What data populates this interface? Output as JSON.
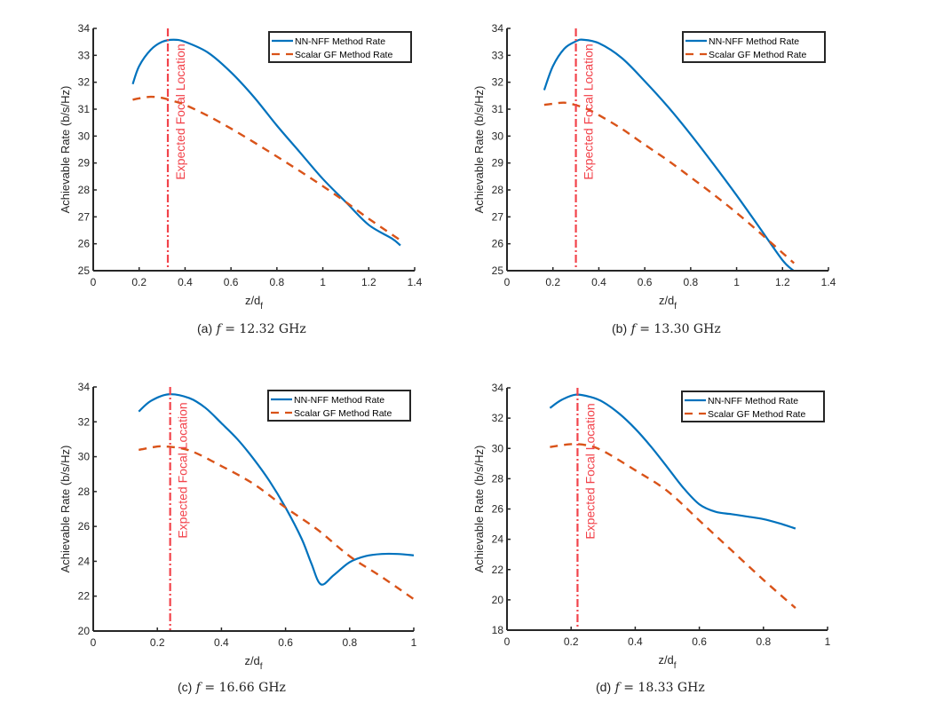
{
  "figure_description": "Four subplots comparing achievable rate of NN-NFF vs Scalar GF methods along z/d_f",
  "chart_data": [
    {
      "type": "line",
      "panel": "a",
      "caption_tag": "(a)",
      "caption_var": "f",
      "caption_eq": "=",
      "caption_value": "12.32 GHz",
      "title": "",
      "xlabel": "z/d",
      "xlabel_sub": "f",
      "ylabel": "Achievable Rate (b/s/Hz)",
      "xlim": [
        0,
        1.4
      ],
      "ylim": [
        25,
        34
      ],
      "xticks": [
        0,
        0.2,
        0.4,
        0.6,
        0.8,
        1,
        1.2,
        1.4
      ],
      "xtick_labels": [
        "0",
        "0.2",
        "0.4",
        "0.6",
        "0.8",
        "1",
        "1.2",
        "1.4"
      ],
      "yticks": [
        25,
        26,
        27,
        28,
        29,
        30,
        31,
        32,
        33,
        34
      ],
      "ytick_labels": [
        "25",
        "26",
        "27",
        "28",
        "29",
        "30",
        "31",
        "32",
        "33",
        "34"
      ],
      "grid": false,
      "legend_position": "top-right",
      "vline": {
        "x": 0.325,
        "label": "Expected Focal Location",
        "color": "#F2434B",
        "style": "dash-dot"
      },
      "series": [
        {
          "name": "NN-NFF Method Rate",
          "color": "#0072BD",
          "style": "solid",
          "x": [
            0.172,
            0.2,
            0.25,
            0.3,
            0.35,
            0.4,
            0.5,
            0.6,
            0.7,
            0.8,
            0.9,
            1.0,
            1.1,
            1.2,
            1.3,
            1.338
          ],
          "y": [
            31.93,
            32.6,
            33.2,
            33.5,
            33.58,
            33.5,
            33.1,
            32.37,
            31.45,
            30.39,
            29.4,
            28.41,
            27.55,
            26.7,
            26.2,
            25.94
          ]
        },
        {
          "name": "Scalar GF Method Rate",
          "color": "#D95319",
          "style": "dashed",
          "x": [
            0.172,
            0.2,
            0.25,
            0.3,
            0.35,
            0.4,
            0.5,
            0.6,
            0.7,
            0.8,
            0.9,
            1.0,
            1.1,
            1.2,
            1.3,
            1.338
          ],
          "y": [
            31.35,
            31.4,
            31.46,
            31.42,
            31.3,
            31.16,
            30.75,
            30.28,
            29.77,
            29.24,
            28.7,
            28.14,
            27.55,
            26.93,
            26.35,
            26.13
          ]
        }
      ]
    },
    {
      "type": "line",
      "panel": "b",
      "caption_tag": "(b)",
      "caption_var": "f",
      "caption_eq": "=",
      "caption_value": "13.30 GHz",
      "title": "",
      "xlabel": "z/d",
      "xlabel_sub": "f",
      "ylabel": "Achievable Rate (b/s/Hz)",
      "xlim": [
        0,
        1.4
      ],
      "ylim": [
        25,
        34
      ],
      "xticks": [
        0,
        0.2,
        0.4,
        0.6,
        0.8,
        1,
        1.2,
        1.4
      ],
      "xtick_labels": [
        "0",
        "0.2",
        "0.4",
        "0.6",
        "0.8",
        "1",
        "1.2",
        "1.4"
      ],
      "yticks": [
        25,
        26,
        27,
        28,
        29,
        30,
        31,
        32,
        33,
        34
      ],
      "ytick_labels": [
        "25",
        "26",
        "27",
        "28",
        "29",
        "30",
        "31",
        "32",
        "33",
        "34"
      ],
      "grid": false,
      "legend_position": "top-right",
      "vline": {
        "x": 0.3,
        "label": "Expected Focal Location",
        "color": "#F2434B",
        "style": "dash-dot"
      },
      "series": [
        {
          "name": "NN-NFF Method Rate",
          "color": "#0072BD",
          "style": "solid",
          "x": [
            0.162,
            0.2,
            0.25,
            0.3,
            0.33,
            0.4,
            0.5,
            0.6,
            0.7,
            0.8,
            0.9,
            1.0,
            1.1,
            1.2,
            1.248
          ],
          "y": [
            31.71,
            32.6,
            33.25,
            33.52,
            33.58,
            33.45,
            32.9,
            32.04,
            31.1,
            30.06,
            28.95,
            27.8,
            26.6,
            25.39,
            25.0
          ]
        },
        {
          "name": "Scalar GF Method Rate",
          "color": "#D95319",
          "style": "dashed",
          "x": [
            0.162,
            0.2,
            0.25,
            0.3,
            0.35,
            0.4,
            0.5,
            0.6,
            0.7,
            0.8,
            0.9,
            1.0,
            1.1,
            1.2,
            1.25
          ],
          "y": [
            31.16,
            31.2,
            31.24,
            31.15,
            31.0,
            30.78,
            30.27,
            29.68,
            29.1,
            28.47,
            27.83,
            27.15,
            26.42,
            25.66,
            25.28
          ]
        }
      ]
    },
    {
      "type": "line",
      "panel": "c",
      "caption_tag": "(c)",
      "caption_var": "f",
      "caption_eq": "=",
      "caption_value": "16.66 GHz",
      "title": "",
      "xlabel": "z/d",
      "xlabel_sub": "f",
      "ylabel": "Achievable Rate (b/s/Hz)",
      "xlim": [
        0,
        1
      ],
      "ylim": [
        20,
        34
      ],
      "xticks": [
        0,
        0.2,
        0.4,
        0.6,
        0.8,
        1
      ],
      "xtick_labels": [
        "0",
        "0.2",
        "0.4",
        "0.6",
        "0.8",
        "1"
      ],
      "yticks": [
        20,
        22,
        24,
        26,
        28,
        30,
        32,
        34
      ],
      "ytick_labels": [
        "20",
        "22",
        "24",
        "26",
        "28",
        "30",
        "32",
        "34"
      ],
      "grid": false,
      "legend_position": "top-right",
      "vline": {
        "x": 0.24,
        "label": "Expected Focal Location",
        "color": "#F2434B",
        "style": "dash-dot"
      },
      "series": [
        {
          "name": "NN-NFF Method Rate",
          "color": "#0072BD",
          "style": "solid",
          "x": [
            0.142,
            0.18,
            0.236,
            0.3,
            0.35,
            0.4,
            0.45,
            0.5,
            0.55,
            0.6,
            0.65,
            0.68,
            0.71,
            0.75,
            0.8,
            0.85,
            0.9,
            0.95,
            1.0
          ],
          "y": [
            32.59,
            33.2,
            33.58,
            33.36,
            32.8,
            31.92,
            31.0,
            29.88,
            28.6,
            27.08,
            25.3,
            23.9,
            22.68,
            23.2,
            23.95,
            24.3,
            24.42,
            24.42,
            24.34
          ]
        },
        {
          "name": "Scalar GF Method Rate",
          "color": "#D95319",
          "style": "dashed",
          "x": [
            0.142,
            0.18,
            0.22,
            0.3,
            0.4,
            0.5,
            0.6,
            0.7,
            0.8,
            0.9,
            1.0
          ],
          "y": [
            30.39,
            30.52,
            30.59,
            30.36,
            29.46,
            28.44,
            27.08,
            25.81,
            24.29,
            23.1,
            21.83
          ]
        }
      ]
    },
    {
      "type": "line",
      "panel": "d",
      "caption_tag": "(d)",
      "caption_var": "f",
      "caption_eq": "=",
      "caption_value": "18.33 GHz",
      "title": "",
      "xlabel": "z/d",
      "xlabel_sub": "f",
      "ylabel": "Achievable Rate (b/s/Hz)",
      "xlim": [
        0,
        1
      ],
      "ylim": [
        18,
        34
      ],
      "xticks": [
        0,
        0.2,
        0.4,
        0.6,
        0.8,
        1
      ],
      "xtick_labels": [
        "0",
        "0.2",
        "0.4",
        "0.6",
        "0.8",
        "1"
      ],
      "yticks": [
        18,
        20,
        22,
        24,
        26,
        28,
        30,
        32,
        34
      ],
      "ytick_labels": [
        "18",
        "20",
        "22",
        "24",
        "26",
        "28",
        "30",
        "32",
        "34"
      ],
      "grid": false,
      "legend_position": "top-right",
      "vline": {
        "x": 0.22,
        "label": "Expected Focal Location",
        "color": "#F2434B",
        "style": "dash-dot"
      },
      "series": [
        {
          "name": "NN-NFF Method Rate",
          "color": "#0072BD",
          "style": "solid",
          "x": [
            0.134,
            0.17,
            0.214,
            0.26,
            0.3,
            0.35,
            0.4,
            0.45,
            0.5,
            0.55,
            0.6,
            0.65,
            0.7,
            0.75,
            0.8,
            0.85,
            0.9
          ],
          "y": [
            32.67,
            33.2,
            33.55,
            33.4,
            33.06,
            32.3,
            31.3,
            30.1,
            28.76,
            27.4,
            26.31,
            25.82,
            25.66,
            25.5,
            25.33,
            25.05,
            24.71
          ]
        },
        {
          "name": "Scalar GF Method Rate",
          "color": "#D95319",
          "style": "dashed",
          "x": [
            0.134,
            0.2,
            0.25,
            0.3,
            0.4,
            0.5,
            0.6,
            0.7,
            0.8,
            0.9
          ],
          "y": [
            30.09,
            30.28,
            30.2,
            29.83,
            28.56,
            27.19,
            25.24,
            23.28,
            21.32,
            19.46
          ]
        }
      ]
    }
  ]
}
